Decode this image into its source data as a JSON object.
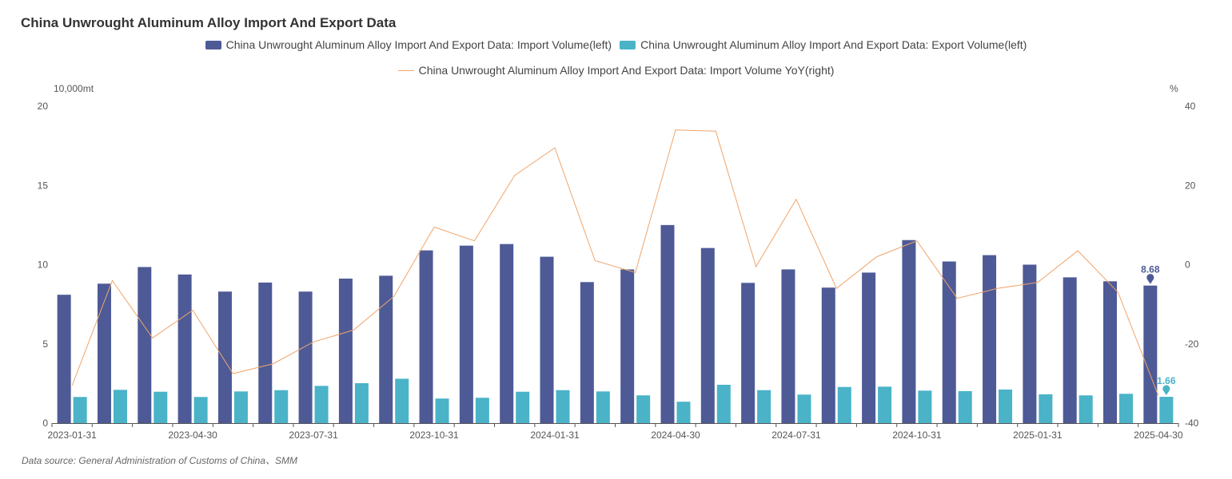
{
  "title": "China Unwrought Aluminum Alloy Import And Export Data",
  "legend": [
    {
      "label": "China Unwrought Aluminum Alloy Import And Export Data: Import Volume(left)",
      "color": "#4e5a96",
      "kind": "bar"
    },
    {
      "label": "China Unwrought Aluminum Alloy Import And Export Data: Export Volume(left)",
      "color": "#4ab3c8",
      "kind": "bar"
    },
    {
      "label": "China Unwrought Aluminum Alloy Import And Export Data: Import Volume YoY(right)",
      "color": "#f0a46a",
      "kind": "line"
    }
  ],
  "units": {
    "left": "10,000mt",
    "right": "%"
  },
  "source": "Data source:  General Administration of Customs of China、SMM",
  "chart_data": {
    "type": "bar",
    "categories": [
      "2023-01-31",
      "2023-02-28",
      "2023-03-31",
      "2023-04-30",
      "2023-05-31",
      "2023-06-30",
      "2023-07-31",
      "2023-08-31",
      "2023-09-30",
      "2023-10-31",
      "2023-11-30",
      "2023-12-31",
      "2024-01-31",
      "2024-02-29",
      "2024-03-31",
      "2024-04-30",
      "2024-05-31",
      "2024-06-30",
      "2024-07-31",
      "2024-08-31",
      "2024-09-30",
      "2024-10-31",
      "2024-11-30",
      "2024-12-31",
      "2025-01-31",
      "2025-02-28",
      "2025-03-31",
      "2025-04-30"
    ],
    "x_tick_labels": [
      "2023-01-31",
      "2023-04-30",
      "2023-07-31",
      "2023-10-31",
      "2024-01-31",
      "2024-04-30",
      "2024-07-31",
      "2024-10-31",
      "2025-01-31",
      "2025-04-30"
    ],
    "series": [
      {
        "name": "China Unwrought Aluminum Alloy Import And Export Data: Import Volume(left)",
        "type": "bar",
        "axis": "left",
        "color": "#4e5a96",
        "values": [
          8.1,
          8.8,
          9.85,
          9.38,
          8.3,
          8.87,
          8.3,
          9.12,
          9.3,
          10.9,
          11.2,
          11.3,
          10.5,
          8.9,
          9.7,
          12.5,
          11.05,
          8.85,
          9.7,
          8.55,
          9.5,
          11.55,
          10.2,
          10.6,
          10.0,
          9.2,
          8.95,
          8.68
        ]
      },
      {
        "name": "China Unwrought Aluminum Alloy Import And Export Data: Export Volume(left)",
        "type": "bar",
        "axis": "left",
        "color": "#4ab3c8",
        "values": [
          1.65,
          2.1,
          1.98,
          1.65,
          2.0,
          2.08,
          2.35,
          2.52,
          2.8,
          1.55,
          1.6,
          1.98,
          2.08,
          2.0,
          1.75,
          1.35,
          2.42,
          2.08,
          1.8,
          2.28,
          2.3,
          2.05,
          2.02,
          2.12,
          1.82,
          1.75,
          1.85,
          1.66
        ]
      },
      {
        "name": "China Unwrought Aluminum Alloy Import And Export Data: Import Volume YoY(right)",
        "type": "line",
        "axis": "right",
        "color": "#f0a46a",
        "values": [
          -30.5,
          -4,
          -18.5,
          -11.5,
          -27.5,
          -25,
          -19.5,
          -16.5,
          -8,
          9.5,
          6,
          22.5,
          29.5,
          1,
          -2,
          34,
          33.7,
          -0.5,
          16.5,
          -6,
          2,
          6,
          -8.5,
          -6,
          -4.5,
          3.5,
          -7,
          -33
        ]
      }
    ],
    "data_labels": [
      {
        "series": 0,
        "index": 27,
        "text": "8.68"
      },
      {
        "series": 1,
        "index": 27,
        "text": "1.66"
      }
    ],
    "y_left": {
      "min": 0,
      "max": 20,
      "ticks": [
        0,
        5,
        10,
        15,
        20
      ]
    },
    "y_right": {
      "min": -40,
      "max": 40,
      "ticks": [
        -40,
        -20,
        0,
        20,
        40
      ]
    },
    "grid": false,
    "legend_position": "top-center"
  }
}
